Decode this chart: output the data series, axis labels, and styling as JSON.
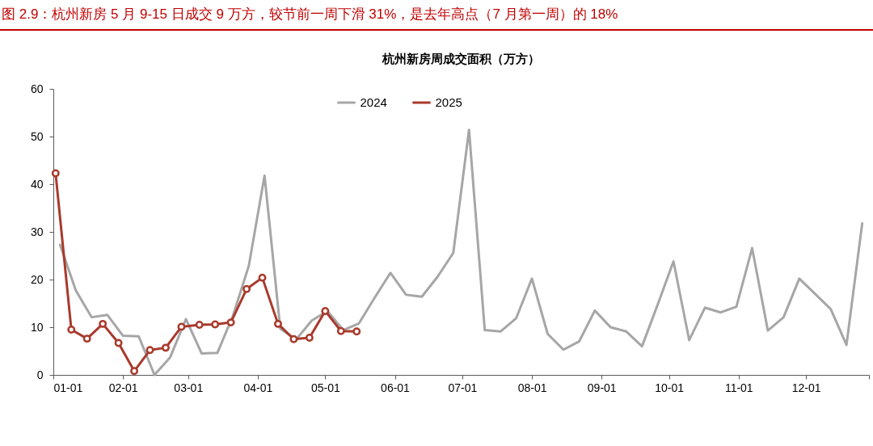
{
  "chart_data": {
    "type": "line",
    "title": "图 2.9：杭州新房 5 月 9-15 日成交 9 万方，较节前一周下滑 31%，是去年高点（7 月第一周）的 18%",
    "subtitle": "杭州新房周成交面积（万方）",
    "xlim": [
      "--01-01",
      "--12-29"
    ],
    "xticks": [
      {
        "value": "--01-01",
        "label": "01-01"
      },
      {
        "value": "--02-01",
        "label": "02-01"
      },
      {
        "value": "--03-01",
        "label": "03-01"
      },
      {
        "value": "--04-01",
        "label": "04-01"
      },
      {
        "value": "--05-01",
        "label": "05-01"
      },
      {
        "value": "--06-01",
        "label": "06-01"
      },
      {
        "value": "--07-01",
        "label": "07-01"
      },
      {
        "value": "--08-01",
        "label": "08-01"
      },
      {
        "value": "--09-01",
        "label": "09-01"
      },
      {
        "value": "--10-01",
        "label": "10-01"
      },
      {
        "value": "--11-01",
        "label": "11-01"
      },
      {
        "value": "--12-01",
        "label": "12-01"
      },
      {
        "value": "--12-29",
        "label": null
      }
    ],
    "ylim": [
      0,
      60
    ],
    "yticks": [
      0,
      10,
      20,
      30,
      40,
      50,
      60
    ],
    "legend": "top",
    "series": [
      {
        "name": "2024",
        "color": "#a6a6a6",
        "x": [
          "--01-04",
          "--01-11",
          "--01-18",
          "--01-25",
          "--02-01",
          "--02-08",
          "--02-15",
          "--02-22",
          "--02-29",
          "--03-07",
          "--03-14",
          "--03-21",
          "--03-28",
          "--04-04",
          "--04-11",
          "--04-18",
          "--04-25",
          "--05-02",
          "--05-09",
          "--05-16",
          "--05-23",
          "--05-30",
          "--06-06",
          "--06-13",
          "--06-20",
          "--06-27",
          "--07-04",
          "--07-11",
          "--07-18",
          "--07-25",
          "--08-01",
          "--08-08",
          "--08-15",
          "--08-22",
          "--08-29",
          "--09-05",
          "--09-12",
          "--09-19",
          "--09-26",
          "--10-03",
          "--10-10",
          "--10-17",
          "--10-24",
          "--10-31",
          "--11-07",
          "--11-14",
          "--11-21",
          "--11-28",
          "--12-05",
          "--12-12",
          "--12-19",
          "--12-26"
        ],
        "values": [
          27.3,
          17.7,
          12.1,
          12.6,
          8.2,
          8.1,
          0,
          3.7,
          11.7,
          4.5,
          4.6,
          12.5,
          22.9,
          41.8,
          9.7,
          7.4,
          11.4,
          13.4,
          9.4,
          10.8,
          16.2,
          21.4,
          16.8,
          16.4,
          20.6,
          25.6,
          51.4,
          9.4,
          9.1,
          11.9,
          20.2,
          8.6,
          5.3,
          7.0,
          13.5,
          10.0,
          9.1,
          6.0,
          14.8,
          23.8,
          7.3,
          14.1,
          13.1,
          14.3,
          26.6,
          9.3,
          12.1,
          20.2,
          17.0,
          13.8,
          6.3,
          31.8
        ]
      },
      {
        "name": "2025",
        "color": "#a93a2c",
        "marker": "circle",
        "x": [
          "--01-02",
          "--01-09",
          "--01-16",
          "--01-23",
          "--01-30",
          "--02-06",
          "--02-13",
          "--02-20",
          "--02-27",
          "--03-06",
          "--03-13",
          "--03-20",
          "--03-27",
          "--04-03",
          "--04-10",
          "--04-17",
          "--04-24",
          "--05-01",
          "--05-08",
          "--05-15"
        ],
        "values": [
          42.3,
          9.5,
          7.6,
          10.7,
          6.7,
          0.8,
          5.2,
          5.7,
          10.1,
          10.5,
          10.6,
          11.0,
          18.0,
          20.4,
          10.7,
          7.5,
          7.8,
          13.4,
          9.2,
          9.1
        ]
      }
    ]
  }
}
